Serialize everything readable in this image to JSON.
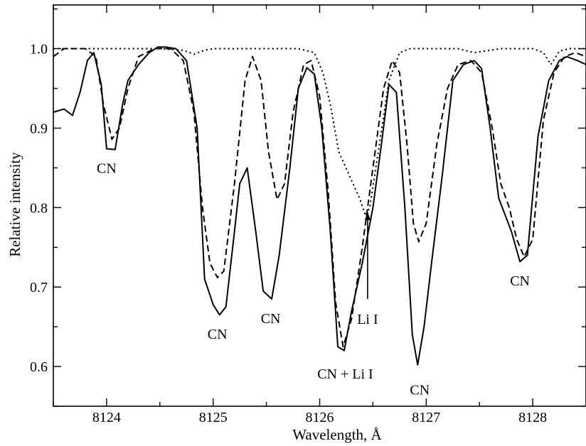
{
  "chart_data": {
    "type": "line",
    "xlabel": "Wavelength, Å",
    "ylabel": "Relative intensity",
    "xlim": [
      8123.5,
      8128.5
    ],
    "ylim": [
      0.55,
      1.055
    ],
    "xticks": [
      8124,
      8125,
      8126,
      8127,
      8128
    ],
    "xtick_labels": [
      "8124",
      "8125",
      "8126",
      "8127",
      "8128"
    ],
    "yticks": [
      0.6,
      0.7,
      0.8,
      0.9,
      1.0
    ],
    "ytick_labels": [
      "0.6",
      "0.7",
      "0.8",
      "0.9",
      "1.0"
    ],
    "grid": false,
    "series": [
      {
        "style": "solid",
        "points": [
          [
            8123.5,
            0.92
          ],
          [
            8123.6,
            0.924
          ],
          [
            8123.68,
            0.916
          ],
          [
            8123.75,
            0.945
          ],
          [
            8123.82,
            0.985
          ],
          [
            8123.88,
            0.995
          ],
          [
            8123.95,
            0.955
          ],
          [
            8124.0,
            0.874
          ],
          [
            8124.08,
            0.873
          ],
          [
            8124.15,
            0.93
          ],
          [
            8124.2,
            0.96
          ],
          [
            8124.3,
            0.98
          ],
          [
            8124.4,
            0.995
          ],
          [
            8124.48,
            1.002
          ],
          [
            8124.55,
            1.002
          ],
          [
            8124.65,
            1.0
          ],
          [
            8124.75,
            0.985
          ],
          [
            8124.85,
            0.9
          ],
          [
            8124.92,
            0.71
          ],
          [
            8125.0,
            0.678
          ],
          [
            8125.06,
            0.665
          ],
          [
            8125.12,
            0.675
          ],
          [
            8125.2,
            0.77
          ],
          [
            8125.25,
            0.83
          ],
          [
            8125.32,
            0.85
          ],
          [
            8125.4,
            0.77
          ],
          [
            8125.47,
            0.695
          ],
          [
            8125.55,
            0.685
          ],
          [
            8125.62,
            0.74
          ],
          [
            8125.72,
            0.85
          ],
          [
            8125.8,
            0.95
          ],
          [
            8125.88,
            0.976
          ],
          [
            8125.95,
            0.968
          ],
          [
            8126.02,
            0.9
          ],
          [
            8126.1,
            0.77
          ],
          [
            8126.17,
            0.625
          ],
          [
            8126.23,
            0.62
          ],
          [
            8126.3,
            0.67
          ],
          [
            8126.4,
            0.73
          ],
          [
            8126.5,
            0.8
          ],
          [
            8126.58,
            0.88
          ],
          [
            8126.65,
            0.955
          ],
          [
            8126.72,
            0.945
          ],
          [
            8126.8,
            0.8
          ],
          [
            8126.87,
            0.64
          ],
          [
            8126.92,
            0.602
          ],
          [
            8126.98,
            0.65
          ],
          [
            8127.05,
            0.73
          ],
          [
            8127.15,
            0.84
          ],
          [
            8127.25,
            0.96
          ],
          [
            8127.35,
            0.98
          ],
          [
            8127.45,
            0.985
          ],
          [
            8127.52,
            0.975
          ],
          [
            8127.6,
            0.9
          ],
          [
            8127.68,
            0.812
          ],
          [
            8127.8,
            0.77
          ],
          [
            8127.88,
            0.732
          ],
          [
            8127.95,
            0.74
          ],
          [
            8128.05,
            0.89
          ],
          [
            8128.15,
            0.96
          ],
          [
            8128.25,
            0.985
          ],
          [
            8128.32,
            0.99
          ],
          [
            8128.42,
            0.985
          ],
          [
            8128.5,
            0.98
          ]
        ]
      },
      {
        "style": "dashed",
        "points": [
          [
            8123.5,
            0.99
          ],
          [
            8123.6,
            1.0
          ],
          [
            8123.8,
            1.0
          ],
          [
            8123.9,
            0.99
          ],
          [
            8123.97,
            0.93
          ],
          [
            8124.05,
            0.886
          ],
          [
            8124.12,
            0.9
          ],
          [
            8124.2,
            0.95
          ],
          [
            8124.3,
            0.99
          ],
          [
            8124.45,
            1.0
          ],
          [
            8124.6,
            1.0
          ],
          [
            8124.72,
            0.985
          ],
          [
            8124.82,
            0.92
          ],
          [
            8124.9,
            0.8
          ],
          [
            8124.97,
            0.73
          ],
          [
            8125.04,
            0.712
          ],
          [
            8125.1,
            0.72
          ],
          [
            8125.2,
            0.83
          ],
          [
            8125.3,
            0.96
          ],
          [
            8125.37,
            0.99
          ],
          [
            8125.45,
            0.96
          ],
          [
            8125.52,
            0.87
          ],
          [
            8125.6,
            0.81
          ],
          [
            8125.67,
            0.83
          ],
          [
            8125.75,
            0.92
          ],
          [
            8125.85,
            0.98
          ],
          [
            8125.92,
            0.985
          ],
          [
            8126.0,
            0.94
          ],
          [
            8126.08,
            0.82
          ],
          [
            8126.15,
            0.68
          ],
          [
            8126.22,
            0.625
          ],
          [
            8126.3,
            0.66
          ],
          [
            8126.4,
            0.75
          ],
          [
            8126.5,
            0.85
          ],
          [
            8126.6,
            0.95
          ],
          [
            8126.68,
            0.985
          ],
          [
            8126.75,
            0.97
          ],
          [
            8126.82,
            0.88
          ],
          [
            8126.88,
            0.78
          ],
          [
            8126.93,
            0.757
          ],
          [
            8127.0,
            0.78
          ],
          [
            8127.1,
            0.88
          ],
          [
            8127.2,
            0.95
          ],
          [
            8127.3,
            0.98
          ],
          [
            8127.42,
            0.985
          ],
          [
            8127.52,
            0.97
          ],
          [
            8127.62,
            0.9
          ],
          [
            8127.7,
            0.83
          ],
          [
            8127.78,
            0.8
          ],
          [
            8127.85,
            0.76
          ],
          [
            8127.92,
            0.738
          ],
          [
            8128.0,
            0.76
          ],
          [
            8128.1,
            0.91
          ],
          [
            8128.2,
            0.97
          ],
          [
            8128.3,
            0.99
          ],
          [
            8128.4,
            0.995
          ],
          [
            8128.5,
            0.99
          ]
        ]
      },
      {
        "style": "dotted",
        "points": [
          [
            8123.5,
            1.0
          ],
          [
            8124.5,
            1.0
          ],
          [
            8124.72,
            0.998
          ],
          [
            8124.82,
            0.993
          ],
          [
            8124.92,
            0.998
          ],
          [
            8125.0,
            1.0
          ],
          [
            8125.8,
            1.0
          ],
          [
            8125.95,
            0.995
          ],
          [
            8126.03,
            0.97
          ],
          [
            8126.1,
            0.93
          ],
          [
            8126.18,
            0.87
          ],
          [
            8126.28,
            0.84
          ],
          [
            8126.38,
            0.81
          ],
          [
            8126.43,
            0.79
          ],
          [
            8126.47,
            0.8
          ],
          [
            8126.55,
            0.87
          ],
          [
            8126.65,
            0.96
          ],
          [
            8126.75,
            0.995
          ],
          [
            8126.85,
            1.0
          ],
          [
            8127.3,
            1.0
          ],
          [
            8127.45,
            0.995
          ],
          [
            8127.6,
            0.998
          ],
          [
            8127.7,
            1.0
          ],
          [
            8128.0,
            1.0
          ],
          [
            8128.1,
            0.995
          ],
          [
            8128.17,
            0.98
          ],
          [
            8128.25,
            0.997
          ],
          [
            8128.35,
            1.0
          ],
          [
            8128.5,
            1.0
          ]
        ]
      }
    ],
    "annotations": [
      {
        "text": "CN",
        "x": 8124.0,
        "y": 0.85
      },
      {
        "text": "CN",
        "x": 8125.04,
        "y": 0.641
      },
      {
        "text": "CN",
        "x": 8125.54,
        "y": 0.661
      },
      {
        "text": "CN + Li I",
        "x": 8126.24,
        "y": 0.591
      },
      {
        "text": "CN",
        "x": 8126.94,
        "y": 0.571
      },
      {
        "text": "CN",
        "x": 8127.88,
        "y": 0.708
      },
      {
        "text": "Li I",
        "x": 8126.45,
        "y": 0.66,
        "arrow_to": [
          8126.45,
          0.795
        ],
        "arrow_from": [
          8126.45,
          0.685
        ]
      }
    ]
  }
}
